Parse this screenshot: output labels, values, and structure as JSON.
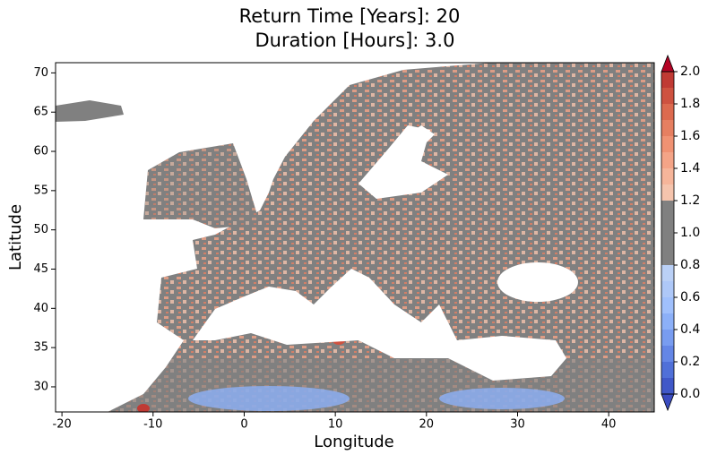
{
  "chart_data": {
    "type": "map",
    "title": "Return Time [Years]: 20",
    "subtitle": "Duration [Hours]: 3.0",
    "x_label": "Longitude",
    "y_label": "Latitude",
    "xlim": [
      -20.7,
      45
    ],
    "ylim": [
      26.8,
      71.3
    ],
    "xticks": [
      -20,
      -10,
      0,
      10,
      20,
      30,
      40
    ],
    "yticks": [
      30,
      35,
      40,
      45,
      50,
      55,
      60,
      65,
      70
    ],
    "colorbar": {
      "clim": [
        0,
        2
      ],
      "levels": [
        0,
        0.1,
        0.2,
        0.3,
        0.4,
        0.5,
        0.6,
        0.7,
        0.8,
        1.2,
        1.3,
        1.4,
        1.5,
        1.6,
        1.7,
        1.8,
        1.9,
        2
      ],
      "colors": [
        "#4058c8",
        "#5070d8",
        "#6486e6",
        "#789cf0",
        "#8cb0f8",
        "#a0c0fc",
        "#aec8f8",
        "#bad0f6",
        "#808080",
        "#f5c4ad",
        "#f6b59a",
        "#f4a487",
        "#f09273",
        "#e67f61",
        "#dc6a4f",
        "#ce5240",
        "#c03a34"
      ],
      "under_color": "#3b4cc0",
      "over_color": "#b40426",
      "ticks": [
        {
          "value": 0,
          "label": "0.0"
        },
        0.2,
        0.4,
        0.6,
        0.8,
        {
          "value": 1,
          "label": "1.0"
        },
        1.2,
        1.4,
        1.6,
        1.8,
        {
          "value": 2,
          "label": "2.0"
        }
      ]
    }
  }
}
